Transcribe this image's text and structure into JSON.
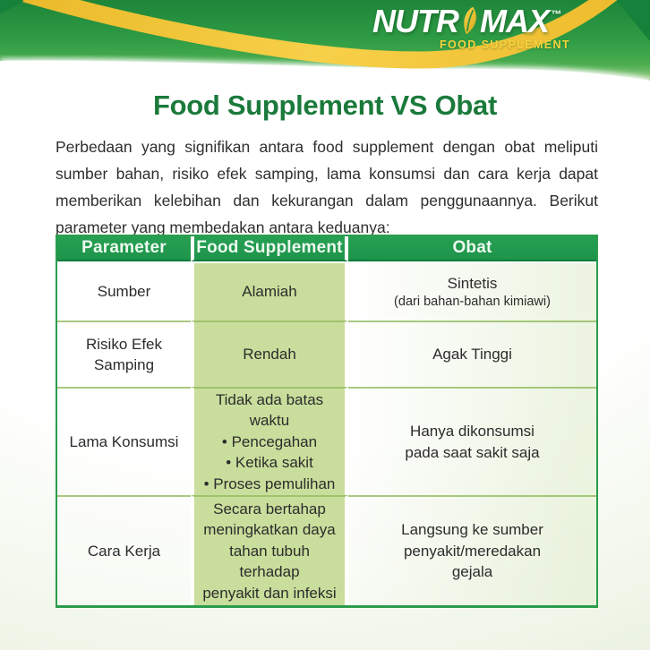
{
  "logo": {
    "brand_pre": "NUTR",
    "brand_post": "MAX",
    "tm": "™",
    "tagline": "FOOD SUPPLEMENT",
    "leaf_icon": "leaf-icon"
  },
  "title": "Food Supplement VS Obat",
  "intro": "Perbedaan yang signifikan antara food supplement dengan obat meliputi sumber bahan, risiko efek samping, lama konsumsi dan cara kerja dapat memberikan kelebihan dan kekurangan dalam penggunaannya. Berikut parameter yang membedakan antara keduanya:",
  "table": {
    "headers": [
      "Parameter",
      "Food Supplement",
      "Obat"
    ],
    "rows": [
      {
        "parameter": [
          "Sumber"
        ],
        "food_supplement": [
          "Alamiah"
        ],
        "obat": [
          "Sintetis",
          "(dari bahan-bahan kimiawi)"
        ]
      },
      {
        "parameter": [
          "Risiko Efek",
          "Samping"
        ],
        "food_supplement": [
          "Rendah"
        ],
        "obat": [
          "Agak Tinggi"
        ]
      },
      {
        "parameter": [
          "Lama Konsumsi"
        ],
        "food_supplement": [
          "Tidak ada batas waktu",
          "• Pencegahan",
          "• Ketika sakit",
          "• Proses pemulihan"
        ],
        "obat": [
          "Hanya dikonsumsi",
          "pada saat sakit saja"
        ]
      },
      {
        "parameter": [
          "Cara Kerja"
        ],
        "food_supplement": [
          "Secara bertahap",
          "meningkatkan daya",
          "tahan tubuh terhadap",
          "penyakit dan infeksi"
        ],
        "obat": [
          "Langsung ke sumber",
          "penyakit/meredakan",
          "gejala"
        ]
      }
    ]
  },
  "colors": {
    "brand_green": "#2a9c4d",
    "header_cell_green": "#1d944a",
    "light_cell_green": "#c9de9c",
    "title_green": "#1b7a3b",
    "ribbon_gold": "#f3c73f",
    "tagline_yellow": "#f7d23f",
    "text_dark": "#2c2c2c"
  }
}
